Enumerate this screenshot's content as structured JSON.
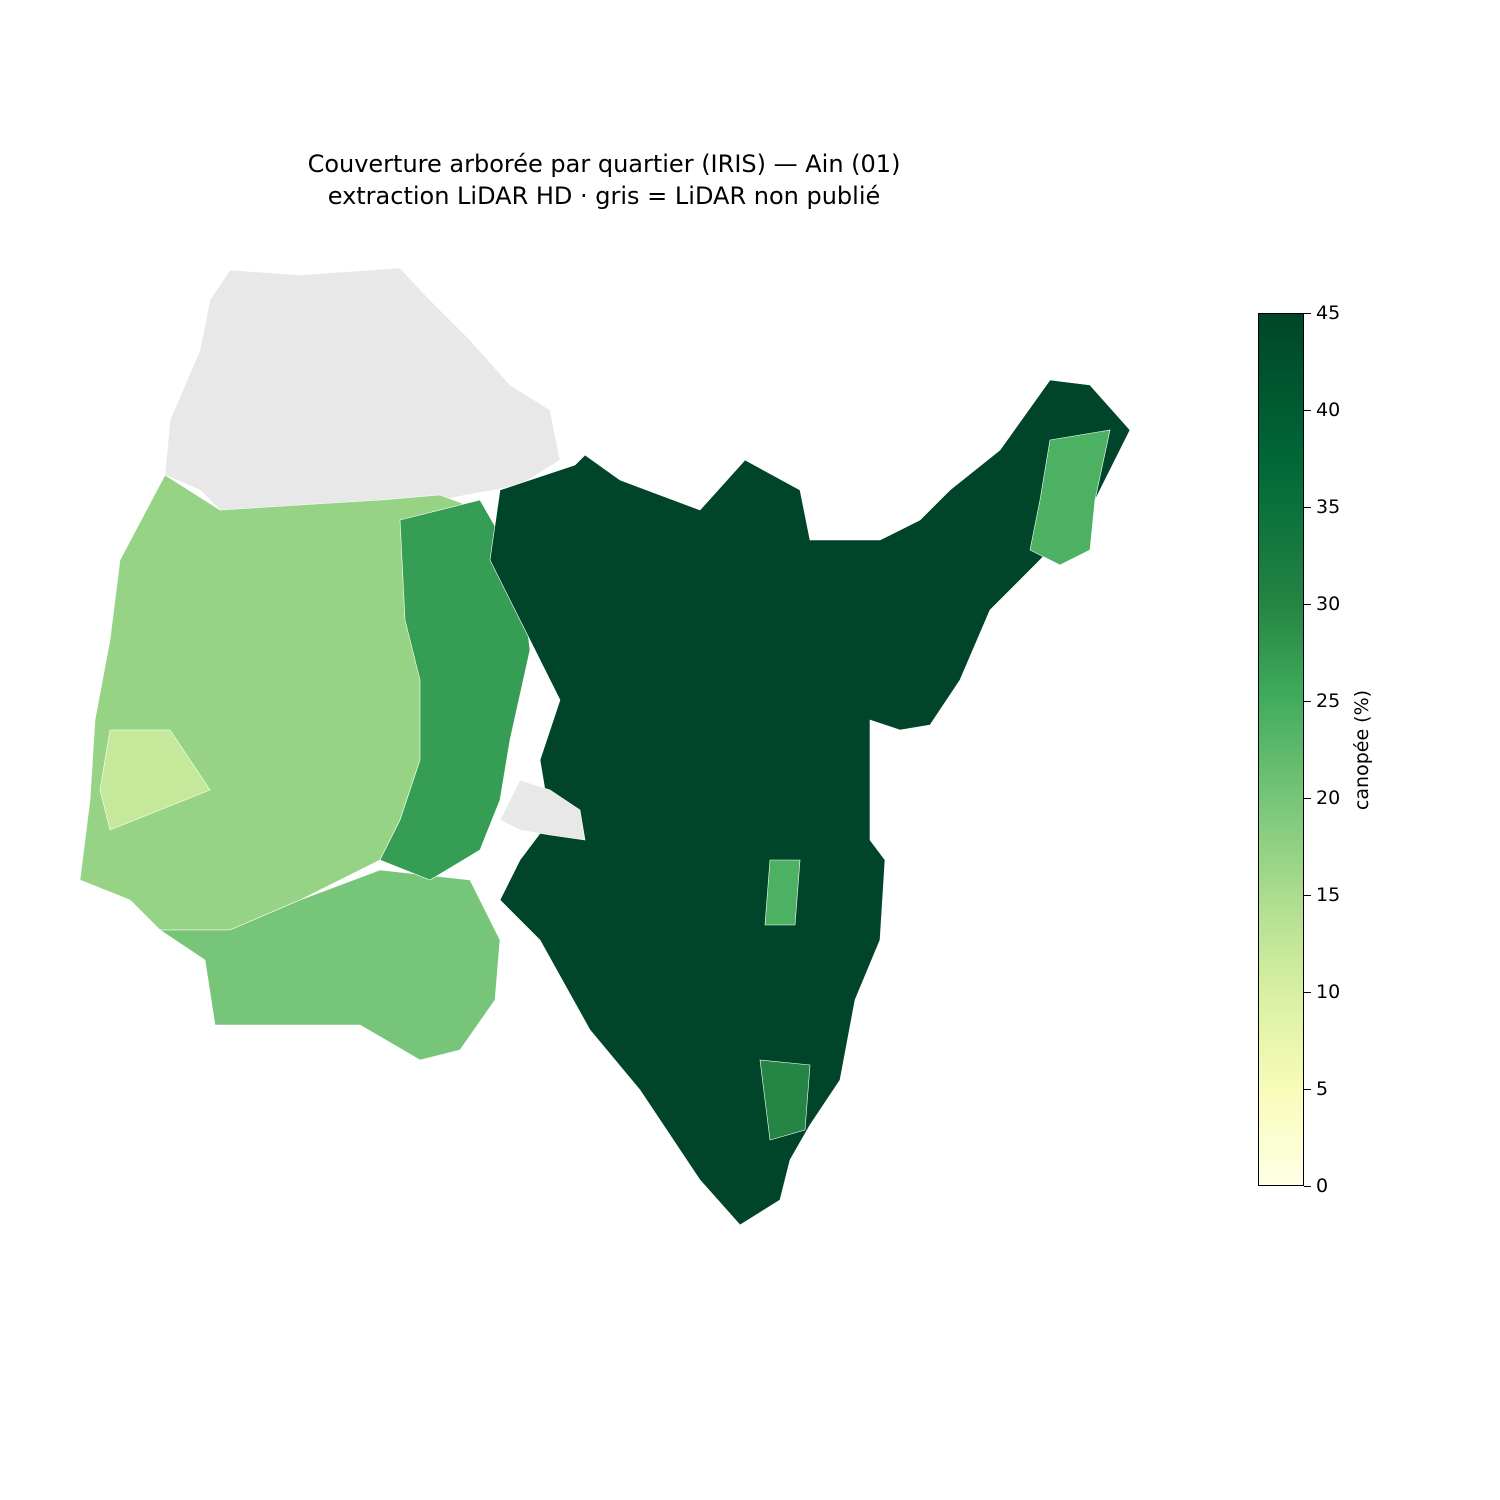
{
  "title": {
    "line1": "Couverture arborée par quartier (IRIS) — Ain (01)",
    "line2": "extraction LiDAR HD · gris = LiDAR non publié"
  },
  "colorbar": {
    "label": "canopée (%)",
    "min": 0,
    "max": 45,
    "ticks": [
      "0",
      "5",
      "10",
      "15",
      "20",
      "25",
      "30",
      "35",
      "40",
      "45"
    ],
    "colormap": "YlGn",
    "missing_color": "#e8e8e8"
  },
  "map": {
    "regions": [
      {
        "name": "north-west-bresse",
        "value": null
      },
      {
        "name": "west-dombes-plateau",
        "value": 17
      },
      {
        "name": "west-edge",
        "value": 12
      },
      {
        "name": "south-west-cotiere",
        "value": 20
      },
      {
        "name": "central-plain",
        "value": 27
      },
      {
        "name": "bugey-jura-massif",
        "value": 45
      },
      {
        "name": "pays-de-gex",
        "value": 24
      },
      {
        "name": "ambérieu-gap",
        "value": null
      },
      {
        "name": "bugey-valley",
        "value": 24
      },
      {
        "name": "south-east-strip",
        "value": 30
      }
    ]
  }
}
